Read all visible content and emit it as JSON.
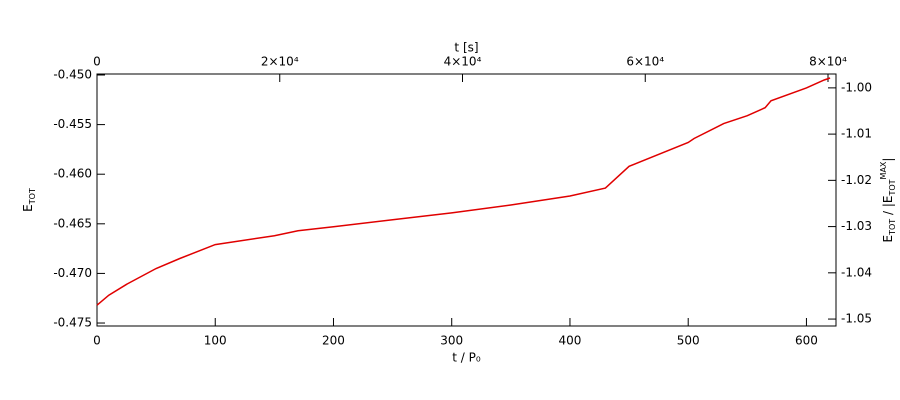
{
  "chart_data": {
    "type": "line",
    "xlabel": "t / P₀",
    "x2label": "t [s]",
    "ylabel_parts": [
      [
        "E",
        "base"
      ],
      [
        "TOT",
        "sub"
      ]
    ],
    "y2label_parts": [
      [
        "E",
        "base"
      ],
      [
        "TOT",
        "sub"
      ],
      [
        " / |E",
        "base"
      ],
      [
        "TOT",
        "sub"
      ],
      [
        "MAX",
        "sup"
      ],
      [
        "|",
        "base"
      ]
    ],
    "x": [
      0,
      10,
      25,
      50,
      70,
      100,
      150,
      170,
      200,
      250,
      300,
      350,
      400,
      430,
      450,
      500,
      505,
      530,
      550,
      565,
      570,
      600,
      615,
      620
    ],
    "series": [
      {
        "color": "#e00000",
        "values": [
          -0.4732,
          -0.4722,
          -0.4711,
          -0.4695,
          -0.4685,
          -0.4671,
          -0.4662,
          -0.4657,
          -0.4653,
          -0.4646,
          -0.4639,
          -0.4631,
          -0.4622,
          -0.4614,
          -0.4592,
          -0.4568,
          -0.4564,
          -0.4549,
          -0.4541,
          -0.4533,
          -0.4526,
          -0.4513,
          -0.4505,
          -0.4503
        ]
      }
    ],
    "xlim": [
      0,
      625
    ],
    "xticks": [
      0,
      100,
      200,
      300,
      400,
      500,
      600
    ],
    "x2lim": [
      0,
      80875
    ],
    "x2ticks": [
      0,
      {
        "value": 20000,
        "label": "2×10⁴"
      },
      {
        "value": 40000,
        "label": "4×10⁴"
      },
      {
        "value": 60000,
        "label": "6×10⁴"
      },
      {
        "value": 80000,
        "label": "8×10⁴"
      }
    ],
    "ylim": [
      -0.4753,
      -0.4499
    ],
    "yticks": [
      {
        "value": -0.45,
        "label": "-0.450"
      },
      -0.455,
      {
        "value": -0.46,
        "label": "-0.460"
      },
      -0.465,
      {
        "value": -0.47,
        "label": "-0.470"
      },
      -0.475
    ],
    "y2lim": [
      -1.0515,
      -0.997
    ],
    "y2ticks": [
      {
        "value": -1,
        "label": "-1.00"
      },
      -1.01,
      -1.02,
      -1.03,
      -1.04,
      -1.05
    ],
    "grid": false
  }
}
